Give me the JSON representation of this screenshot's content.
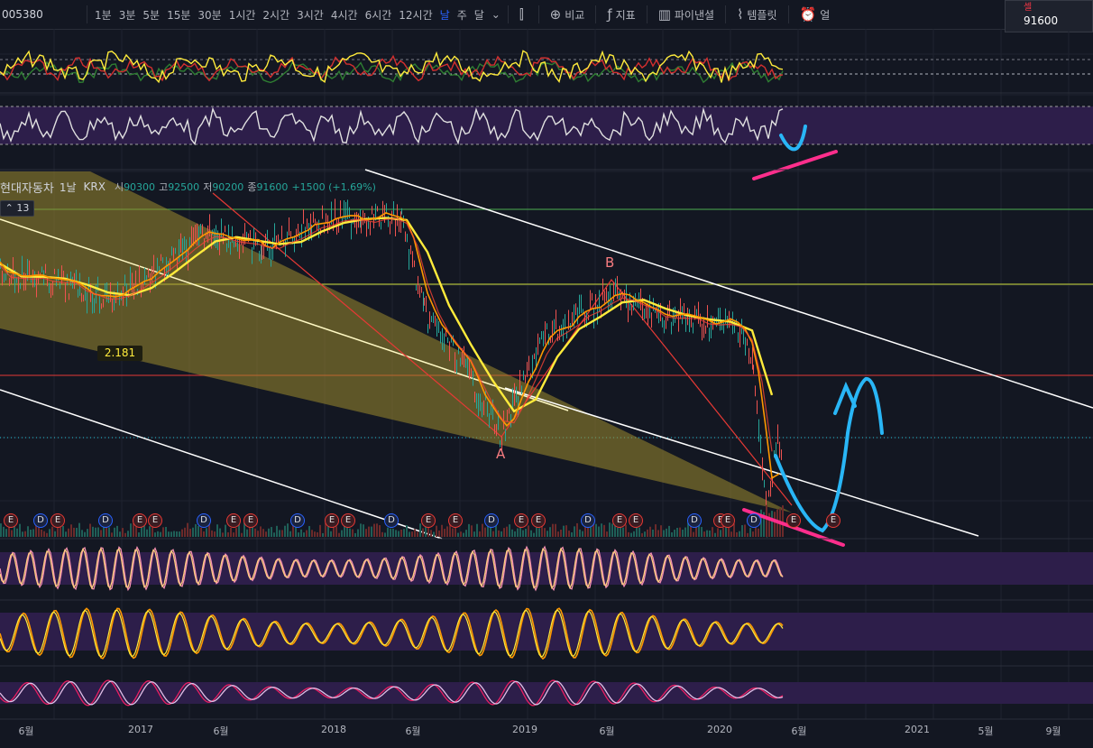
{
  "toolbar": {
    "symbol": "005380",
    "timeframes": [
      "1분",
      "3분",
      "5분",
      "15분",
      "30분",
      "1시간",
      "2시간",
      "3시간",
      "4시간",
      "6시간",
      "12시간",
      "날",
      "주",
      "달"
    ],
    "active_timeframe": "날",
    "chart_type_icon": "candlestick-icon",
    "compare_label": "비교",
    "indicators_label": "지표",
    "financials_label": "파이낸셜",
    "templates_label": "템플릿",
    "alert_label": "얼"
  },
  "price_badge": {
    "label": "셀",
    "value": "91600"
  },
  "legend": {
    "name": "현대자동차",
    "timeframe": "1날",
    "exchange": "KRX",
    "open_label": "시",
    "open": "90300",
    "high_label": "고",
    "high": "92500",
    "low_label": "저",
    "low": "90200",
    "close_label": "종",
    "close": "91600",
    "change": "+1500 (+1.69%)"
  },
  "indicator_count": "13",
  "fib_label": "2.181",
  "wave_labels": {
    "a": "A",
    "b": "B"
  },
  "events": [
    "E",
    "D",
    "E",
    "D",
    "E",
    "E",
    "D",
    "E",
    "E",
    "D",
    "E",
    "E",
    "D",
    "E",
    "E",
    "D",
    "E",
    "E",
    "D",
    "E",
    "E",
    "D",
    "E",
    "E",
    "D",
    "E",
    "E"
  ],
  "colors": {
    "background": "#131722",
    "candle_up": "#26a69a",
    "candle_down": "#ef5350",
    "ma_slow": "#ffeb3b",
    "ma_fast": "#ff9800",
    "ma_red": "#f44336",
    "fib_fill": "#9c8a2e",
    "channel": "#ffffff",
    "annotation_blue": "#29b6f6",
    "annotation_pink": "#ff2e8c",
    "band_purple": "#2d1e4a"
  },
  "chart_data": {
    "type": "candlestick",
    "x_ticks": [
      "6월",
      "2017",
      "6월",
      "2018",
      "6월",
      "2019",
      "6월",
      "2020",
      "6월",
      "2021",
      "5월",
      "9월"
    ],
    "price_series": {
      "dates": [
        "2016-05",
        "2016-08",
        "2016-11",
        "2017-02",
        "2017-05",
        "2017-08",
        "2017-11",
        "2018-02",
        "2018-05",
        "2018-08",
        "2018-10",
        "2018-11",
        "2019-02",
        "2019-05",
        "2019-07",
        "2019-10",
        "2020-01",
        "2020-02",
        "2020-03",
        "2020-04",
        "2020-05"
      ],
      "close": [
        144000,
        141000,
        136000,
        145000,
        156000,
        150000,
        158000,
        160000,
        159000,
        132000,
        118000,
        96000,
        124000,
        137000,
        132000,
        129000,
        128000,
        115000,
        72000,
        95000,
        91600
      ]
    },
    "last_price": 91600,
    "annotations": {
      "fib_extension": "2.181",
      "wave_points": [
        "A",
        "B"
      ],
      "forecast": "drop then sharp rebound"
    }
  }
}
